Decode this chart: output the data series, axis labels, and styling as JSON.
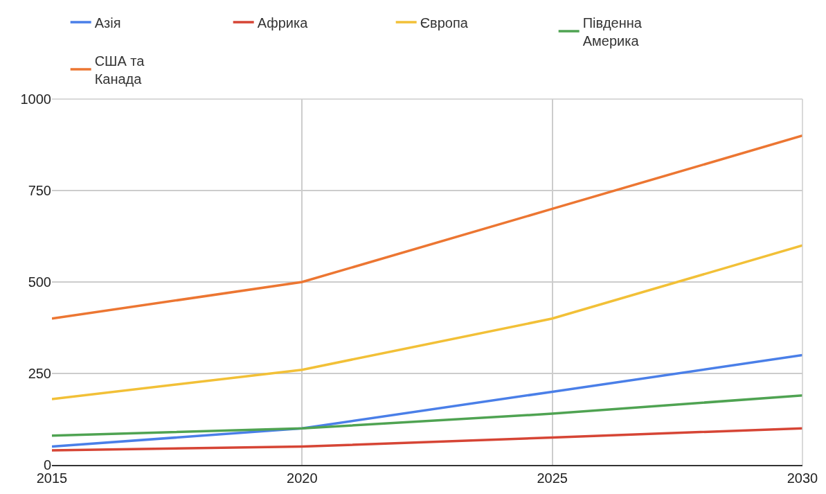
{
  "chart_data": {
    "type": "line",
    "x": [
      2015,
      2020,
      2025,
      2030
    ],
    "series": [
      {
        "name": "Азія",
        "color": "#4a7fe8",
        "values": [
          50,
          100,
          200,
          300
        ]
      },
      {
        "name": "Африка",
        "color": "#d64535",
        "values": [
          40,
          50,
          75,
          100
        ]
      },
      {
        "name": "Європа",
        "color": "#f2c037",
        "values": [
          180,
          260,
          400,
          600
        ]
      },
      {
        "name": "Південна Америка",
        "color": "#4fa352",
        "values": [
          80,
          100,
          140,
          190
        ]
      },
      {
        "name": "США та Канада",
        "color": "#ec7632",
        "values": [
          400,
          500,
          700,
          900
        ]
      }
    ],
    "xlim": [
      2015,
      2030
    ],
    "xticks": [
      2015,
      2020,
      2025,
      2030
    ],
    "ylim": [
      0,
      1000
    ],
    "yticks": [
      0,
      250,
      500,
      750,
      1000
    ],
    "grid": true,
    "legend": "top",
    "marker": "none",
    "line_style": "solid"
  }
}
